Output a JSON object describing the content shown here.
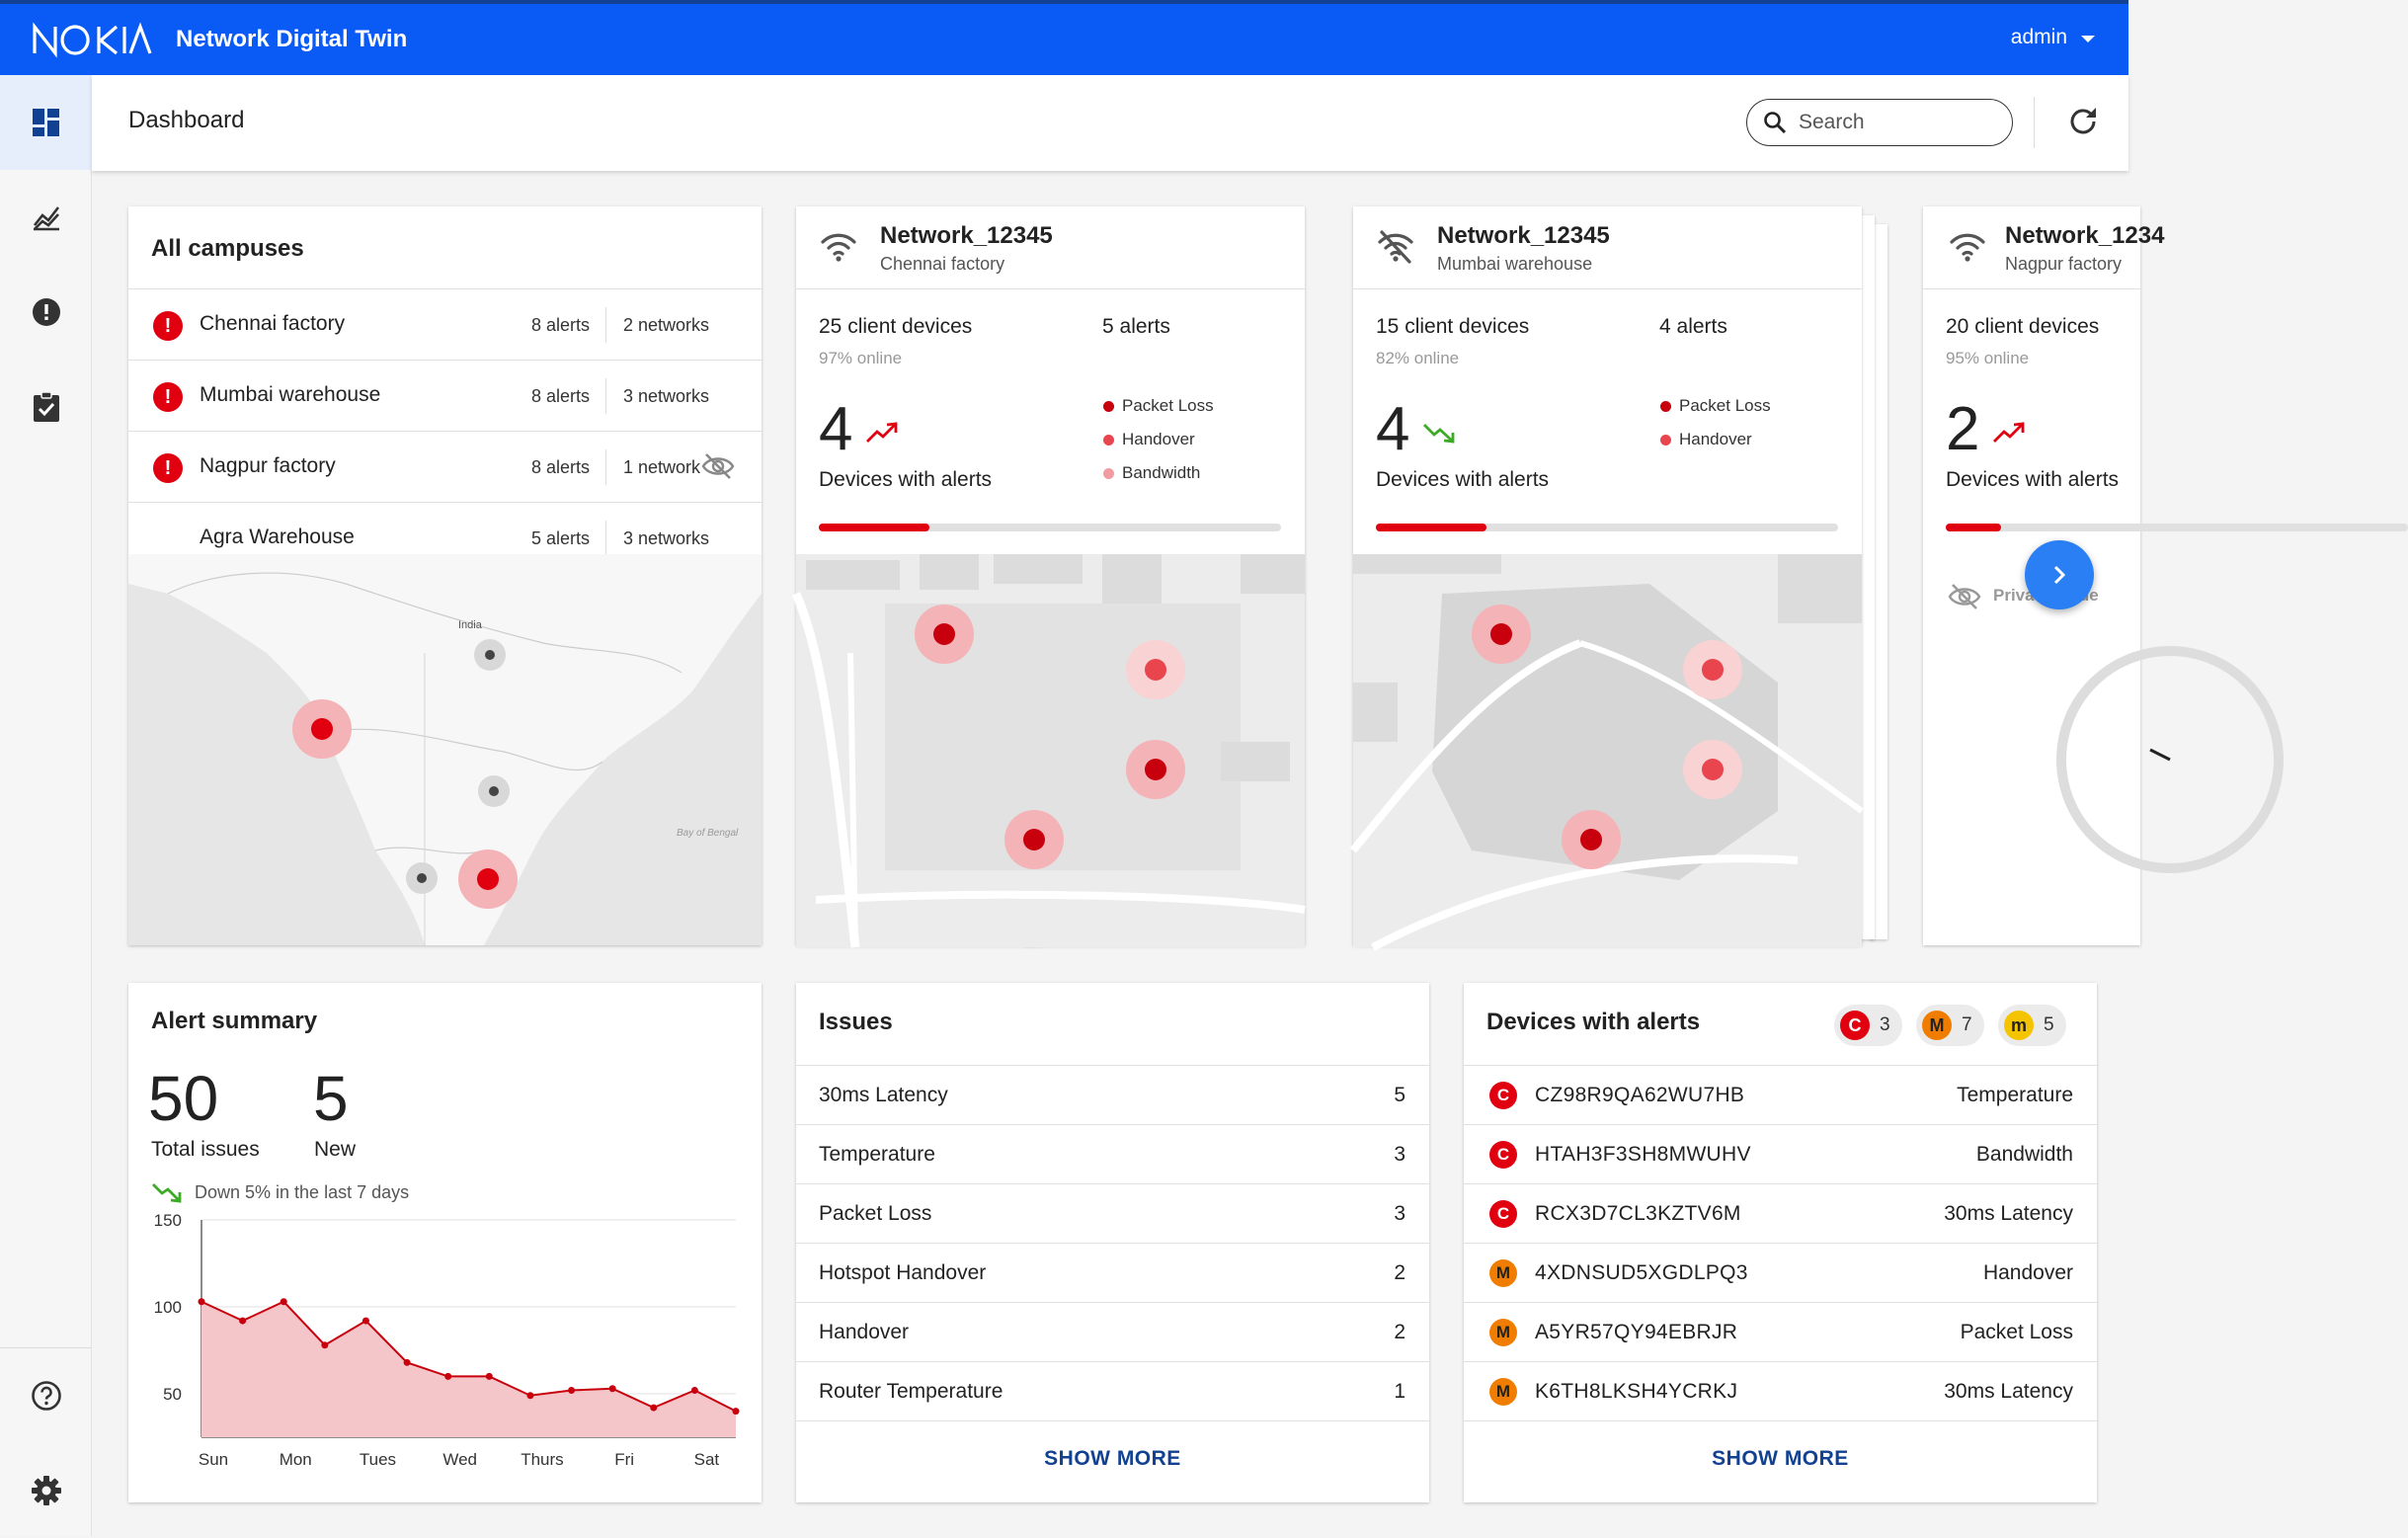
{
  "app": {
    "brand": "NOKIA",
    "title": "Network Digital Twin",
    "user": "admin"
  },
  "header": {
    "page_title": "Dashboard",
    "search_placeholder": "Search"
  },
  "campuses": {
    "title": "All campuses",
    "rows": [
      {
        "name": "Chennai factory",
        "alerts": "8 alerts",
        "networks": "2 networks",
        "alert": true,
        "hidden": false
      },
      {
        "name": "Mumbai warehouse",
        "alerts": "8 alerts",
        "networks": "3 networks",
        "alert": true,
        "hidden": false
      },
      {
        "name": "Nagpur factory",
        "alerts": "8 alerts",
        "networks": "1 network",
        "alert": true,
        "hidden": true
      },
      {
        "name": "Agra Warehouse",
        "alerts": "5 alerts",
        "networks": "3 networks",
        "alert": false,
        "hidden": false
      }
    ],
    "map_labels": {
      "india": "India",
      "bay": "Bay of Bengal"
    }
  },
  "networks": [
    {
      "name": "Network_12345",
      "location": "Chennai factory",
      "devices": "25 client devices",
      "online": "97% online",
      "alerts": "5 alerts",
      "count": "4",
      "count_label": "Devices with alerts",
      "trend": "up",
      "progress": 0.24,
      "issues": [
        "Packet Loss",
        "Handover",
        "Bandwidth"
      ]
    },
    {
      "name": "Network_12345",
      "location": "Mumbai warehouse",
      "devices": "15 client devices",
      "online": "82% online",
      "alerts": "4 alerts",
      "count": "4",
      "count_label": "Devices with alerts",
      "trend": "down",
      "progress": 0.24,
      "issues": [
        "Packet Loss",
        "Handover"
      ]
    },
    {
      "name": "Network_1234",
      "location": "Nagpur factory",
      "devices": "20 client devices",
      "online": "95% online",
      "alerts": "",
      "count": "2",
      "count_label": "Devices with alerts",
      "trend": "up",
      "progress": 0.12,
      "private_mode": "Private mode"
    }
  ],
  "colors": {
    "brand_blue": "#0a5af5",
    "critical": "#e0000f",
    "major": "#f07d00",
    "minor": "#f5c400",
    "link": "#124191"
  },
  "alert_summary": {
    "title": "Alert summary",
    "total": "50",
    "total_label": "Total issues",
    "new": "5",
    "new_label": "New",
    "trend_text": "Down 5% in the last 7 days"
  },
  "chart_data": {
    "type": "area",
    "categories": [
      "Sun",
      "Mon",
      "Tues",
      "Wed",
      "Thurs",
      "Fri",
      "Sat"
    ],
    "x": [
      0,
      0.5,
      1,
      1.5,
      2,
      2.5,
      3,
      3.5,
      4,
      4.5,
      5,
      5.5,
      6,
      6.5
    ],
    "values": [
      103,
      92,
      103,
      78,
      92,
      68,
      60,
      60,
      49,
      52,
      53,
      42,
      52,
      40
    ],
    "y_ticks": [
      150,
      100,
      50
    ],
    "ylim": [
      25,
      150
    ],
    "series_color": "#c8000d",
    "fill_color": "#f5c6c9"
  },
  "issues": {
    "title": "Issues",
    "rows": [
      {
        "label": "30ms Latency",
        "value": "5"
      },
      {
        "label": "Temperature",
        "value": "3"
      },
      {
        "label": "Packet Loss",
        "value": "3"
      },
      {
        "label": "Hotspot Handover",
        "value": "2"
      },
      {
        "label": "Handover",
        "value": "2"
      },
      {
        "label": "Router Temperature",
        "value": "1"
      }
    ],
    "show_more": "SHOW MORE"
  },
  "devices": {
    "title": "Devices with alerts",
    "chips": [
      {
        "letter": "C",
        "count": "3",
        "color": "#e0000f"
      },
      {
        "letter": "M",
        "count": "7",
        "color": "#f07d00"
      },
      {
        "letter": "m",
        "count": "5",
        "color": "#f5c400"
      }
    ],
    "rows": [
      {
        "sev": "C",
        "id": "CZ98R9QA62WU7HB",
        "issue": "Temperature"
      },
      {
        "sev": "C",
        "id": "HTAH3F3SH8MWUHV",
        "issue": "Bandwidth"
      },
      {
        "sev": "C",
        "id": "RCX3D7CL3KZTV6M",
        "issue": "30ms Latency"
      },
      {
        "sev": "M",
        "id": "4XDNSUD5XGDLPQ3",
        "issue": "Handover"
      },
      {
        "sev": "M",
        "id": "A5YR57QY94EBRJR",
        "issue": "Packet Loss"
      },
      {
        "sev": "M",
        "id": "K6TH8LKSH4YCRKJ",
        "issue": "30ms Latency"
      }
    ],
    "show_more": "SHOW MORE"
  }
}
